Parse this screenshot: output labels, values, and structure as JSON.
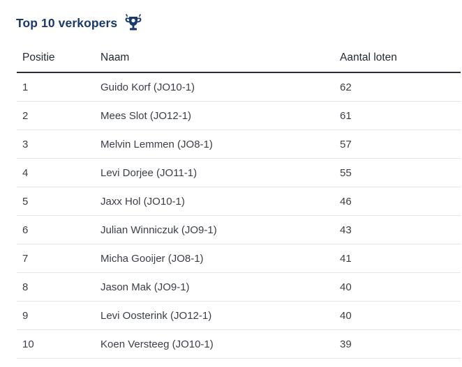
{
  "section": {
    "title": "Top 10 verkopers",
    "icon": "trophy-icon",
    "accent_color": "#1a3a6b"
  },
  "table": {
    "headers": [
      "Positie",
      "Naam",
      "Aantal loten"
    ],
    "rows": [
      {
        "position": "1",
        "name": "Guido Korf (JO10-1)",
        "tickets": "62"
      },
      {
        "position": "2",
        "name": "Mees Slot (JO12-1)",
        "tickets": "61"
      },
      {
        "position": "3",
        "name": "Melvin Lemmen (JO8-1)",
        "tickets": "57"
      },
      {
        "position": "4",
        "name": "Levi Dorjee (JO11-1)",
        "tickets": "55"
      },
      {
        "position": "5",
        "name": "Jaxx Hol (JO10-1)",
        "tickets": "46"
      },
      {
        "position": "6",
        "name": "Julian Winniczuk (JO9-1)",
        "tickets": "43"
      },
      {
        "position": "7",
        "name": "Micha Gooijer (JO8-1)",
        "tickets": "41"
      },
      {
        "position": "8",
        "name": "Jason Mak (JO9-1)",
        "tickets": "40"
      },
      {
        "position": "9",
        "name": "Levi Oosterink (JO12-1)",
        "tickets": "40"
      },
      {
        "position": "10",
        "name": "Koen Versteeg (JO10-1)",
        "tickets": "39"
      }
    ]
  }
}
